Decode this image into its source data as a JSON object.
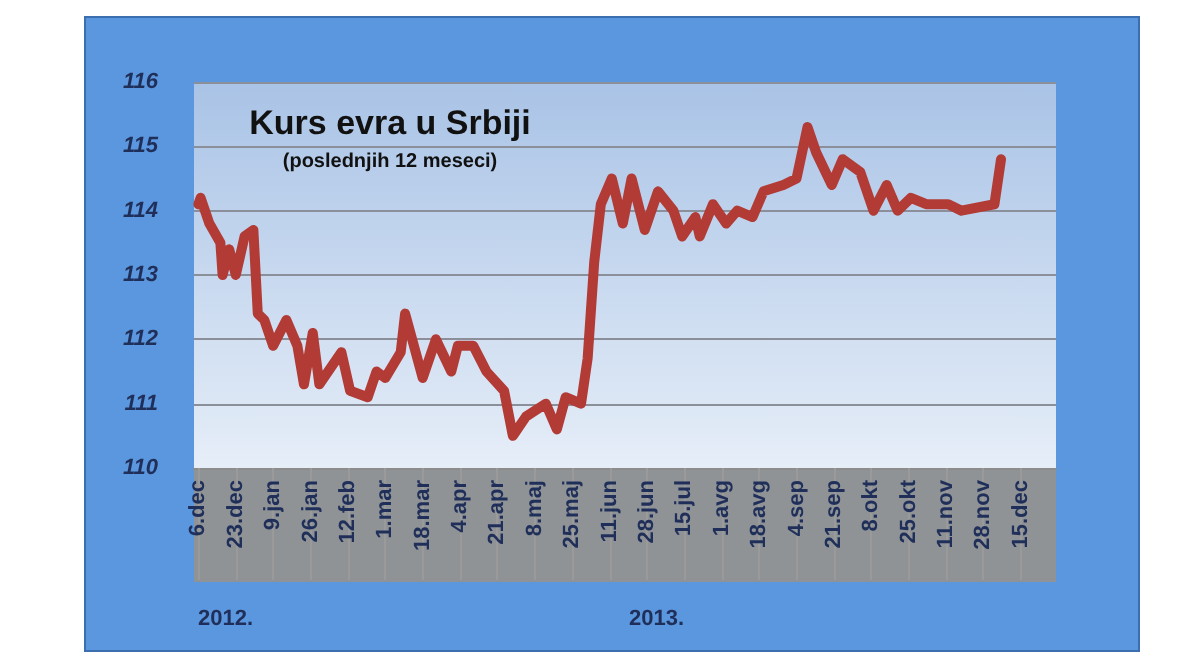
{
  "chart_data": {
    "type": "line",
    "title": "Kurs evra u Srbiji",
    "subtitle": "(poslednjih 12 meseci)",
    "x": [
      "2012-12-06",
      "2012-12-07",
      "2012-12-11",
      "2012-12-16",
      "2012-12-17",
      "2012-12-20",
      "2012-12-23",
      "2012-12-27",
      "2012-12-31",
      "2013-01-02",
      "2013-01-05",
      "2013-01-09",
      "2013-01-15",
      "2013-01-20",
      "2013-01-23",
      "2013-01-27",
      "2013-01-30",
      "2013-02-09",
      "2013-02-13",
      "2013-02-21",
      "2013-02-25",
      "2013-03-01",
      "2013-03-08",
      "2013-03-10",
      "2013-03-14",
      "2013-03-18",
      "2013-03-24",
      "2013-03-31",
      "2013-04-03",
      "2013-04-10",
      "2013-04-16",
      "2013-04-24",
      "2013-04-28",
      "2013-05-04",
      "2013-05-13",
      "2013-05-18",
      "2013-05-22",
      "2013-05-29",
      "2013-06-01",
      "2013-06-04",
      "2013-06-07",
      "2013-06-12",
      "2013-06-17",
      "2013-06-21",
      "2013-06-27",
      "2013-07-03",
      "2013-07-10",
      "2013-07-14",
      "2013-07-20",
      "2013-07-22",
      "2013-07-28",
      "2013-08-03",
      "2013-08-08",
      "2013-08-15",
      "2013-08-20",
      "2013-08-29",
      "2013-09-04",
      "2013-09-09",
      "2013-09-13",
      "2013-09-20",
      "2013-09-25",
      "2013-10-03",
      "2013-10-09",
      "2013-10-15",
      "2013-10-20",
      "2013-10-26",
      "2013-11-02",
      "2013-11-12",
      "2013-11-18",
      "2013-12-03",
      "2013-12-06"
    ],
    "series": [
      {
        "color": "#b23b36",
        "values": [
          114.1,
          114.2,
          113.8,
          113.5,
          113.0,
          113.4,
          113.0,
          113.6,
          113.7,
          112.4,
          112.3,
          111.9,
          112.3,
          111.9,
          111.3,
          112.1,
          111.3,
          111.8,
          111.2,
          111.1,
          111.5,
          111.4,
          111.8,
          112.4,
          111.9,
          111.4,
          112.0,
          111.5,
          111.9,
          111.9,
          111.5,
          111.2,
          110.5,
          110.8,
          111.0,
          110.6,
          111.1,
          111.0,
          111.7,
          113.2,
          114.1,
          114.5,
          113.8,
          114.5,
          113.7,
          114.3,
          114.0,
          113.6,
          113.9,
          113.6,
          114.1,
          113.8,
          114.0,
          113.9,
          114.3,
          114.4,
          114.5,
          115.3,
          114.9,
          114.4,
          114.8,
          114.6,
          114.0,
          114.4,
          114.0,
          114.2,
          114.1,
          114.1,
          114.0,
          114.1,
          114.8
        ]
      }
    ],
    "xlim": [
      "2012-12-04",
      "2013-12-31"
    ],
    "xticks": [
      {
        "value": "2012-12-06",
        "label": "6.dec"
      },
      {
        "value": "2012-12-23",
        "label": "23.dec"
      },
      {
        "value": "2013-01-09",
        "label": "9.jan"
      },
      {
        "value": "2013-01-26",
        "label": "26.jan"
      },
      {
        "value": "2013-02-12",
        "label": "12.feb"
      },
      {
        "value": "2013-03-01",
        "label": "1.mar"
      },
      {
        "value": "2013-03-18",
        "label": "18.mar"
      },
      {
        "value": "2013-04-04",
        "label": "4.apr"
      },
      {
        "value": "2013-04-21",
        "label": "21.apr"
      },
      {
        "value": "2013-05-08",
        "label": "8.maj"
      },
      {
        "value": "2013-05-25",
        "label": "25.maj"
      },
      {
        "value": "2013-06-11",
        "label": "11.jun"
      },
      {
        "value": "2013-06-28",
        "label": "28.jun"
      },
      {
        "value": "2013-07-15",
        "label": "15.jul"
      },
      {
        "value": "2013-08-01",
        "label": "1.avg"
      },
      {
        "value": "2013-08-18",
        "label": "18.avg"
      },
      {
        "value": "2013-09-04",
        "label": "4.sep"
      },
      {
        "value": "2013-09-21",
        "label": "21.sep"
      },
      {
        "value": "2013-10-08",
        "label": "8.okt"
      },
      {
        "value": "2013-10-25",
        "label": "25.okt"
      },
      {
        "value": "2013-11-11",
        "label": "11.nov"
      },
      {
        "value": "2013-11-28",
        "label": "28.nov"
      },
      {
        "value": "2013-12-15",
        "label": "15.dec"
      }
    ],
    "ylim": [
      110,
      116
    ],
    "yticks": [
      110,
      111,
      112,
      113,
      114,
      115,
      116
    ],
    "grid": "y",
    "marker": "none",
    "line_style": "solid",
    "annotations": [
      "2012.",
      "2013."
    ]
  }
}
